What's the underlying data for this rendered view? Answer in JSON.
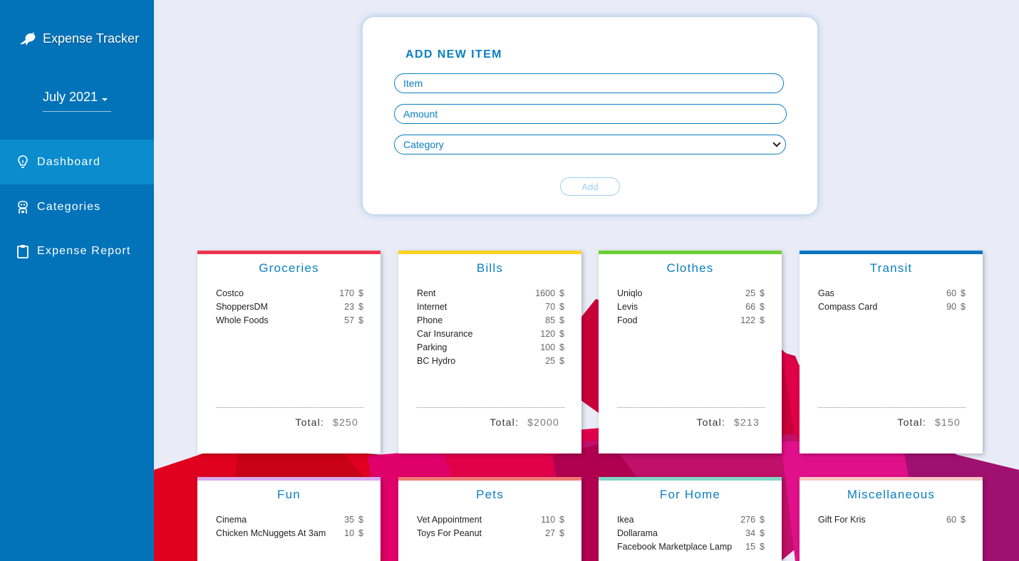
{
  "app": {
    "title": "Expense Tracker"
  },
  "month_selector": {
    "value": "July 2021"
  },
  "nav": {
    "dashboard": "Dashboard",
    "categories": "Categories",
    "expense_report": "Expense Report"
  },
  "form": {
    "title": "ADD NEW ITEM",
    "item_placeholder": "Item",
    "amount_placeholder": "Amount",
    "category_placeholder": "Category",
    "add_label": "Add"
  },
  "total_label": "Total:",
  "currency_suffix": "$",
  "categories": [
    {
      "name": "Groceries",
      "color": "#f0364f",
      "total": "$250",
      "items": [
        {
          "label": "Costco",
          "amount": "170"
        },
        {
          "label": "ShoppersDM",
          "amount": "23"
        },
        {
          "label": "Whole Foods",
          "amount": "57"
        }
      ]
    },
    {
      "name": "Bills",
      "color": "#ffd21f",
      "total": "$2000",
      "items": [
        {
          "label": "Rent",
          "amount": "1600"
        },
        {
          "label": "Internet",
          "amount": "70"
        },
        {
          "label": "Phone",
          "amount": "85"
        },
        {
          "label": "Car Insurance",
          "amount": "120"
        },
        {
          "label": "Parking",
          "amount": "100"
        },
        {
          "label": "BC Hydro",
          "amount": "25"
        }
      ]
    },
    {
      "name": "Clothes",
      "color": "#6bcf34",
      "total": "$213",
      "items": [
        {
          "label": "Uniqlo",
          "amount": "25"
        },
        {
          "label": "Levis",
          "amount": "66"
        },
        {
          "label": "Food",
          "amount": "122"
        }
      ]
    },
    {
      "name": "Transit",
      "color": "#0a73c4",
      "total": "$150",
      "items": [
        {
          "label": "Gas",
          "amount": "60"
        },
        {
          "label": "Compass Card",
          "amount": "90"
        }
      ]
    },
    {
      "name": "Fun",
      "color": "#d8a8f0",
      "total": "",
      "items": [
        {
          "label": "Cinema",
          "amount": "35"
        },
        {
          "label": "Chicken McNuggets At 3am",
          "amount": "10"
        }
      ]
    },
    {
      "name": "Pets",
      "color": "#f07a76",
      "total": "",
      "items": [
        {
          "label": "Vet Appointment",
          "amount": "110"
        },
        {
          "label": "Toys For Peanut",
          "amount": "27"
        }
      ]
    },
    {
      "name": "For Home",
      "color": "#7fd6c6",
      "total": "",
      "items": [
        {
          "label": "Ikea",
          "amount": "276"
        },
        {
          "label": "Dollarama",
          "amount": "34"
        },
        {
          "label": "Facebook Marketplace Lamp",
          "amount": "15"
        }
      ]
    },
    {
      "name": "Miscellaneous",
      "color": "#f7c7c2",
      "total": "",
      "items": [
        {
          "label": "Gift For Kris",
          "amount": "60"
        }
      ]
    }
  ]
}
